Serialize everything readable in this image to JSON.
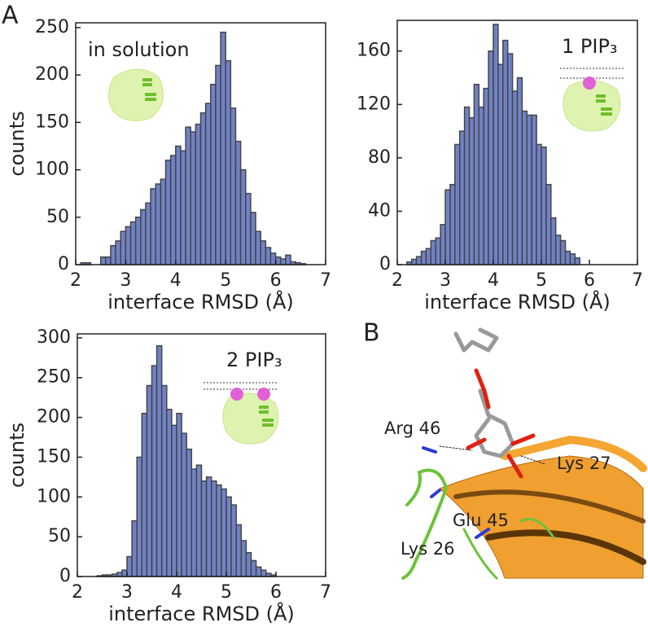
{
  "panel_labels": [
    "A",
    "B"
  ],
  "structure_labels": [
    "Arg 46",
    "Lys 27",
    "Glu 45",
    "Lys 26"
  ],
  "chart_data": [
    {
      "type": "histogram",
      "annotation": "in solution",
      "xlabel": "interface RMSD (Å)",
      "ylabel": "counts",
      "color": "#7082c6",
      "edgecolor": "#454545",
      "bins": [
        2.1,
        2.2,
        2.3,
        2.4,
        2.5,
        2.6,
        2.7,
        2.8,
        2.9,
        3.0,
        3.1,
        3.2,
        3.3,
        3.4,
        3.5,
        3.6,
        3.7,
        3.8,
        3.9,
        4.0,
        4.1,
        4.2,
        4.3,
        4.4,
        4.5,
        4.6,
        4.7,
        4.8,
        4.9,
        5.0,
        5.1,
        5.2,
        5.3,
        5.4,
        5.5,
        5.6,
        5.7,
        5.8,
        5.9,
        6.0,
        6.1,
        6.2,
        6.3,
        6.4,
        6.5,
        6.6
      ],
      "counts": [
        2,
        2,
        0,
        0,
        8,
        8,
        20,
        25,
        35,
        40,
        45,
        50,
        58,
        65,
        80,
        85,
        90,
        110,
        115,
        125,
        120,
        145,
        140,
        148,
        160,
        170,
        190,
        210,
        245,
        215,
        165,
        130,
        100,
        75,
        55,
        35,
        25,
        18,
        12,
        8,
        6,
        10,
        3,
        2,
        1
      ],
      "xlim": [
        2,
        7
      ],
      "xticks": [
        2,
        3,
        4,
        5,
        6,
        7
      ],
      "ylim": [
        0,
        255
      ],
      "yticks": [
        0,
        50,
        100,
        150,
        200,
        250
      ]
    },
    {
      "type": "histogram",
      "annotation": "1 PIP₃",
      "xlabel": "interface RMSD (Å)",
      "color": "#7082c6",
      "edgecolor": "#454545",
      "bins": [
        2.2,
        2.3,
        2.4,
        2.5,
        2.6,
        2.7,
        2.8,
        2.9,
        3.0,
        3.1,
        3.2,
        3.3,
        3.4,
        3.5,
        3.6,
        3.7,
        3.8,
        3.9,
        4.0,
        4.1,
        4.2,
        4.3,
        4.4,
        4.5,
        4.6,
        4.7,
        4.8,
        4.9,
        5.0,
        5.1,
        5.2,
        5.3,
        5.4,
        5.5,
        5.6,
        5.7,
        5.8
      ],
      "counts": [
        2,
        4,
        6,
        10,
        12,
        18,
        20,
        30,
        56,
        60,
        90,
        100,
        118,
        110,
        135,
        118,
        132,
        160,
        180,
        150,
        168,
        158,
        130,
        140,
        115,
        112,
        112,
        90,
        88,
        60,
        35,
        22,
        18,
        10,
        8,
        5
      ],
      "xlim": [
        2,
        7
      ],
      "xticks": [
        2,
        3,
        4,
        5,
        6,
        7
      ],
      "ylim": [
        0,
        183
      ],
      "yticks": [
        0,
        40,
        80,
        120,
        160
      ]
    },
    {
      "type": "histogram",
      "annotation": "2 PIP₃",
      "xlabel": "interface RMSD (Å)",
      "ylabel": "counts",
      "color": "#7082c6",
      "edgecolor": "#454545",
      "bins": [
        2.4,
        2.5,
        2.6,
        2.7,
        2.8,
        2.9,
        3.0,
        3.1,
        3.2,
        3.3,
        3.4,
        3.5,
        3.6,
        3.7,
        3.8,
        3.9,
        4.0,
        4.1,
        4.2,
        4.3,
        4.4,
        4.5,
        4.6,
        4.7,
        4.8,
        4.9,
        5.0,
        5.1,
        5.2,
        5.3,
        5.4,
        5.5,
        5.6,
        5.7,
        5.8,
        5.9,
        6.0
      ],
      "counts": [
        1,
        2,
        2,
        3,
        5,
        8,
        25,
        70,
        150,
        205,
        240,
        265,
        290,
        240,
        210,
        190,
        205,
        180,
        160,
        135,
        140,
        120,
        125,
        120,
        115,
        110,
        100,
        90,
        65,
        45,
        30,
        20,
        12,
        8,
        4,
        2
      ],
      "xlim": [
        2,
        7
      ],
      "xticks": [
        2,
        3,
        4,
        5,
        6,
        7
      ],
      "ylim": [
        0,
        305
      ],
      "yticks": [
        0,
        50,
        100,
        150,
        200,
        250,
        300
      ]
    }
  ]
}
